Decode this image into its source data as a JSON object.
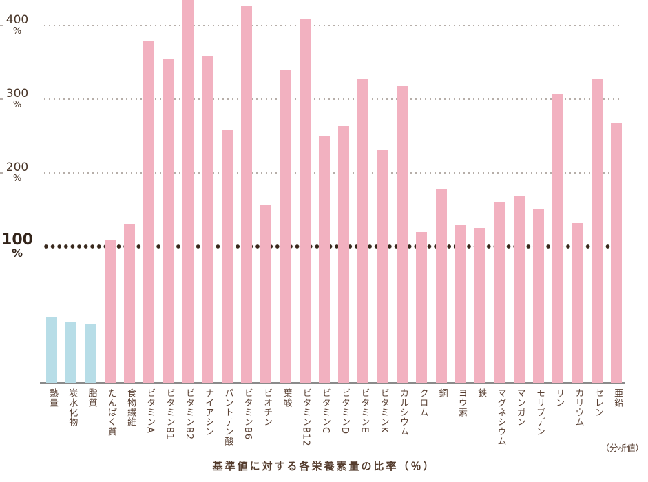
{
  "chart": {
    "title": "基準値に対する各栄養素量の比率（％）",
    "note_label": "（分析値）"
  },
  "y_axis": {
    "unit": "%",
    "ticks": [
      {
        "label": "400",
        "value": 400,
        "unit": "%",
        "bold": false
      },
      {
        "label": "300",
        "value": 300,
        "unit": "%",
        "bold": false
      },
      {
        "label": "200",
        "value": 200,
        "unit": "%",
        "bold": false
      },
      {
        "label": "100",
        "value": 100,
        "unit": "%",
        "bold": true
      }
    ]
  },
  "chart_data": {
    "type": "bar",
    "title": "基準値に対する各栄養素量の比率（％）",
    "xlabel": "",
    "ylabel": "%",
    "ylim": [
      0,
      436
    ],
    "baseline_reference": 100,
    "grid": "light dotted horizontal lines at 200%, 300%, 400%; bold dark dotted reference line at 100%",
    "legend": "none",
    "annotation": "（分析値）",
    "categories": [
      "熱量",
      "炭水化物",
      "脂質",
      "たんぱく質",
      "食物繊維",
      "ビタミンA",
      "ビタミンB1",
      "ビタミンB2",
      "ナイアシン",
      "パントテン酸",
      "ビタミンB6",
      "ビオチン",
      "葉酸",
      "ビタミンB12",
      "ビタミンC",
      "ビタミンD",
      "ビタミンE",
      "ビタミンK",
      "カルシウム",
      "クロム",
      "銅",
      "ヨウ素",
      "鉄",
      "マグネシウム",
      "マンガン",
      "モリブデン",
      "リン",
      "カリウム",
      "セレン",
      "亜鉛"
    ],
    "values": [
      48,
      45,
      43,
      109,
      131,
      379,
      355,
      436,
      358,
      258,
      427,
      157,
      339,
      408,
      250,
      264,
      327,
      231,
      318,
      120,
      178,
      129,
      125,
      161,
      168,
      151,
      307,
      132,
      327,
      268
    ],
    "unit": "%",
    "colors": {
      "macro_bar_color": "#b7dde7",
      "nutrient_bar_color": "#f2b1c0",
      "blue_bar_count": 3,
      "grid_dot_color": "#b6aea9",
      "reference_line_color": "#38281c",
      "text_color": "#5a4134"
    },
    "clipped_bars": [
      "ビタミンB2"
    ]
  }
}
